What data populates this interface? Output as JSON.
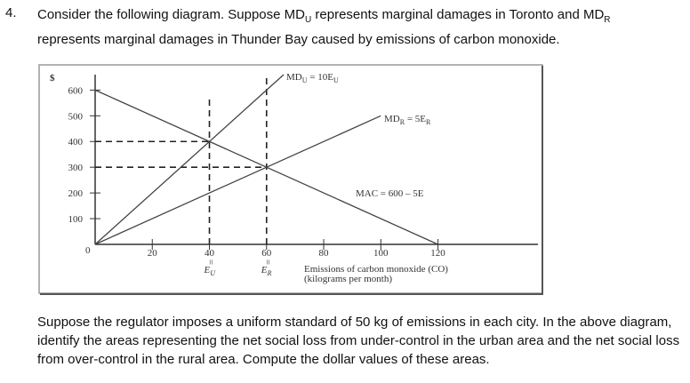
{
  "number": "4.",
  "question": [
    "Consider the following diagram.  Suppose MD",
    "U",
    " represents marginal damages in Toronto and MD",
    "R",
    " represents marginal damages in Thunder Bay caused by emissions of carbon monoxide."
  ],
  "diagram": {
    "y_unit": "$",
    "origin_label": "0",
    "xlim": [
      0,
      155
    ],
    "ylim": [
      0,
      660
    ],
    "xticks": [
      20,
      40,
      60,
      80,
      100,
      120
    ],
    "yticks": [
      100,
      200,
      300,
      400,
      500,
      600
    ],
    "x_notes": [
      {
        "x": 40,
        "eq": "=",
        "label": "E",
        "sub": "U"
      },
      {
        "x": 60,
        "eq": "=",
        "label": "E",
        "sub": "R"
      }
    ],
    "x_title": [
      "Emissions of carbon monoxide (CO)",
      "(kilograms per month)"
    ],
    "lines": [
      {
        "label": [
          "MD",
          "U",
          " = 10E",
          "U"
        ],
        "x": [
          0,
          66
        ],
        "values": [
          0,
          660
        ]
      },
      {
        "label": [
          "MD",
          "R",
          " = 5E",
          "R"
        ],
        "x": [
          0,
          100
        ],
        "values": [
          0,
          500
        ]
      },
      {
        "label": [
          "MAC = 600 – 5E"
        ],
        "x": [
          0,
          120
        ],
        "values": [
          600,
          0
        ]
      }
    ],
    "guides": [
      {
        "x": [
          0,
          40
        ],
        "values": [
          400,
          400
        ]
      },
      {
        "x": [
          0,
          60
        ],
        "values": [
          300,
          300
        ]
      },
      {
        "x": [
          40,
          40
        ],
        "values": [
          0,
          570
        ]
      },
      {
        "x": [
          60,
          60
        ],
        "values": [
          0,
          660
        ]
      }
    ]
  },
  "followup": "Suppose the regulator imposes a uniform standard of 50 kg of emissions in each city.  In the above diagram, identify the areas representing the net social loss from under-control in the urban area and the net social loss from over-control in the rural area. Compute the dollar values of these areas."
}
